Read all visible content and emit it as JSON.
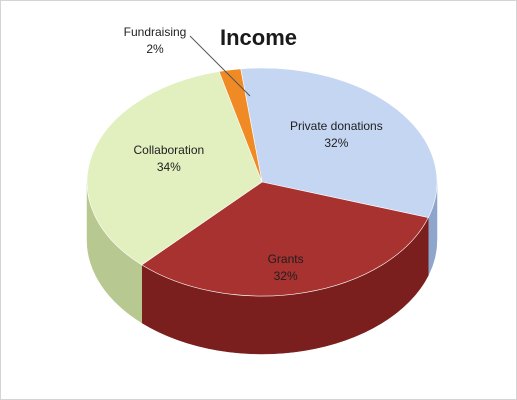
{
  "chart_data": {
    "type": "pie",
    "title": "Income",
    "slices": [
      {
        "label": "Private donations",
        "value": 32,
        "value_label": "32%",
        "color": "#c5d6f3",
        "side_color": "#8ea6cc"
      },
      {
        "label": "Grants",
        "value": 32,
        "value_label": "32%",
        "color": "#a83230",
        "side_color": "#7a1f1d"
      },
      {
        "label": "Collaboration",
        "value": 34,
        "value_label": "34%",
        "color": "#e2f0c0",
        "side_color": "#b7c990"
      },
      {
        "label": "Fundraising",
        "value": 2,
        "value_label": "2%",
        "color": "#f08a24",
        "side_color": "#b8621a"
      }
    ],
    "style": "3d-pie",
    "legend": "none",
    "data_labels": "on-slice"
  }
}
